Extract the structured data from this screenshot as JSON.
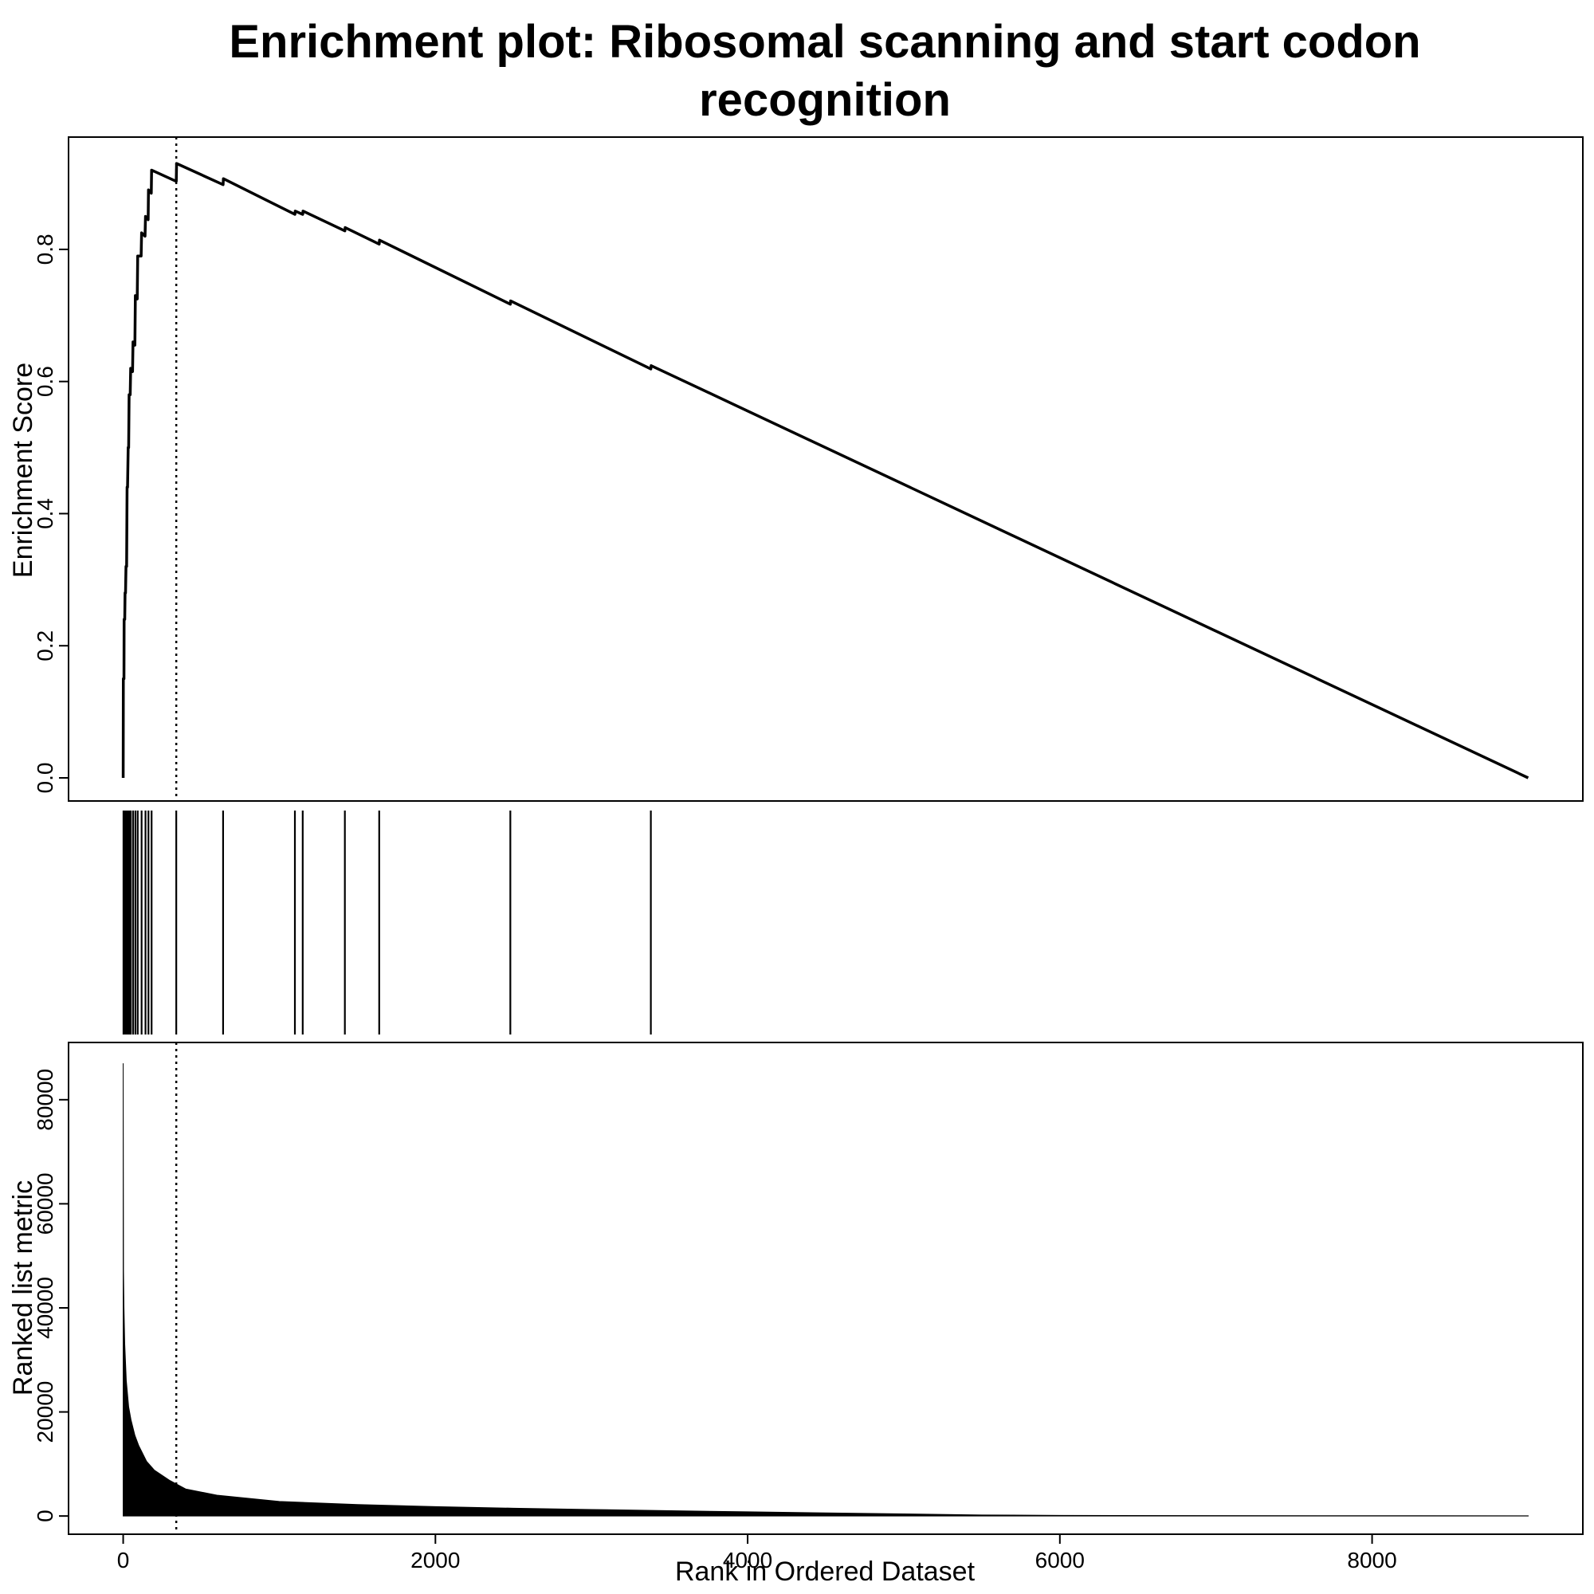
{
  "chart_data": {
    "type": "line",
    "title_line1": "Enrichment plot: Ribosomal scanning and start codon",
    "title_line2": "recognition",
    "panels": {
      "enrichment": {
        "ylabel": "Enrichment Score",
        "ylim": [
          -0.035,
          0.97
        ],
        "yticks": [
          0.0,
          0.2,
          0.4,
          0.6,
          0.8
        ],
        "ytick_labels": [
          "0.0",
          "0.2",
          "0.4",
          "0.6",
          "0.8"
        ],
        "series": [
          {
            "x": [
              0,
              1,
              5,
              6,
              10,
              12,
              15,
              18,
              22,
              25,
              28,
              32,
              35,
              38,
              45,
              48,
              60,
              63,
              75,
              78,
              90,
              93,
              115,
              118,
              140,
              143,
              160,
              162,
              180,
              182,
              340,
              342,
              640,
              642,
              1100,
              1102,
              1150,
              1152,
              1420,
              1422,
              1640,
              1642,
              2480,
              2482,
              3380,
              3382,
              9000
            ],
            "y": [
              0.0,
              0.15,
              0.15,
              0.24,
              0.24,
              0.28,
              0.28,
              0.32,
              0.32,
              0.44,
              0.44,
              0.5,
              0.5,
              0.58,
              0.58,
              0.62,
              0.615,
              0.66,
              0.655,
              0.73,
              0.725,
              0.79,
              0.79,
              0.825,
              0.82,
              0.85,
              0.845,
              0.89,
              0.885,
              0.92,
              0.903,
              0.93,
              0.898,
              0.907,
              0.853,
              0.858,
              0.853,
              0.858,
              0.828,
              0.833,
              0.808,
              0.814,
              0.717,
              0.722,
              0.619,
              0.624,
              0.0
            ]
          }
        ]
      },
      "hits": {
        "positions": [
          2,
          6,
          12,
          18,
          25,
          32,
          38,
          48,
          63,
          78,
          93,
          118,
          143,
          162,
          182,
          340,
          640,
          1100,
          1150,
          1420,
          1640,
          2480,
          3380
        ]
      },
      "ranked_metric": {
        "ylabel": "Ranked list metric",
        "xlabel": "Rank in Ordered Dataset",
        "ylim": [
          -3500,
          91000
        ],
        "yticks": [
          0,
          20000,
          40000,
          60000,
          80000
        ],
        "ytick_labels": [
          "0",
          "20000",
          "40000",
          "60000",
          "80000"
        ],
        "x": [
          0,
          2,
          5,
          10,
          20,
          35,
          50,
          75,
          100,
          150,
          200,
          300,
          400,
          600,
          1000,
          1500,
          2000,
          2500,
          3000,
          4000,
          5000,
          5500,
          6000,
          7000,
          8000,
          9000
        ],
        "y": [
          87000,
          47000,
          40000,
          33000,
          26000,
          21000,
          18500,
          15500,
          13500,
          10500,
          8800,
          6800,
          5200,
          4000,
          2800,
          2200,
          1800,
          1500,
          1250,
          800,
          400,
          200,
          120,
          80,
          60,
          50
        ]
      }
    },
    "xlim": [
      -350,
      9350
    ],
    "xticks": [
      0,
      2000,
      4000,
      6000,
      8000
    ],
    "xtick_labels": [
      "0",
      "2000",
      "4000",
      "6000",
      "8000"
    ],
    "leading_edge_rank": 340,
    "grid": false
  }
}
